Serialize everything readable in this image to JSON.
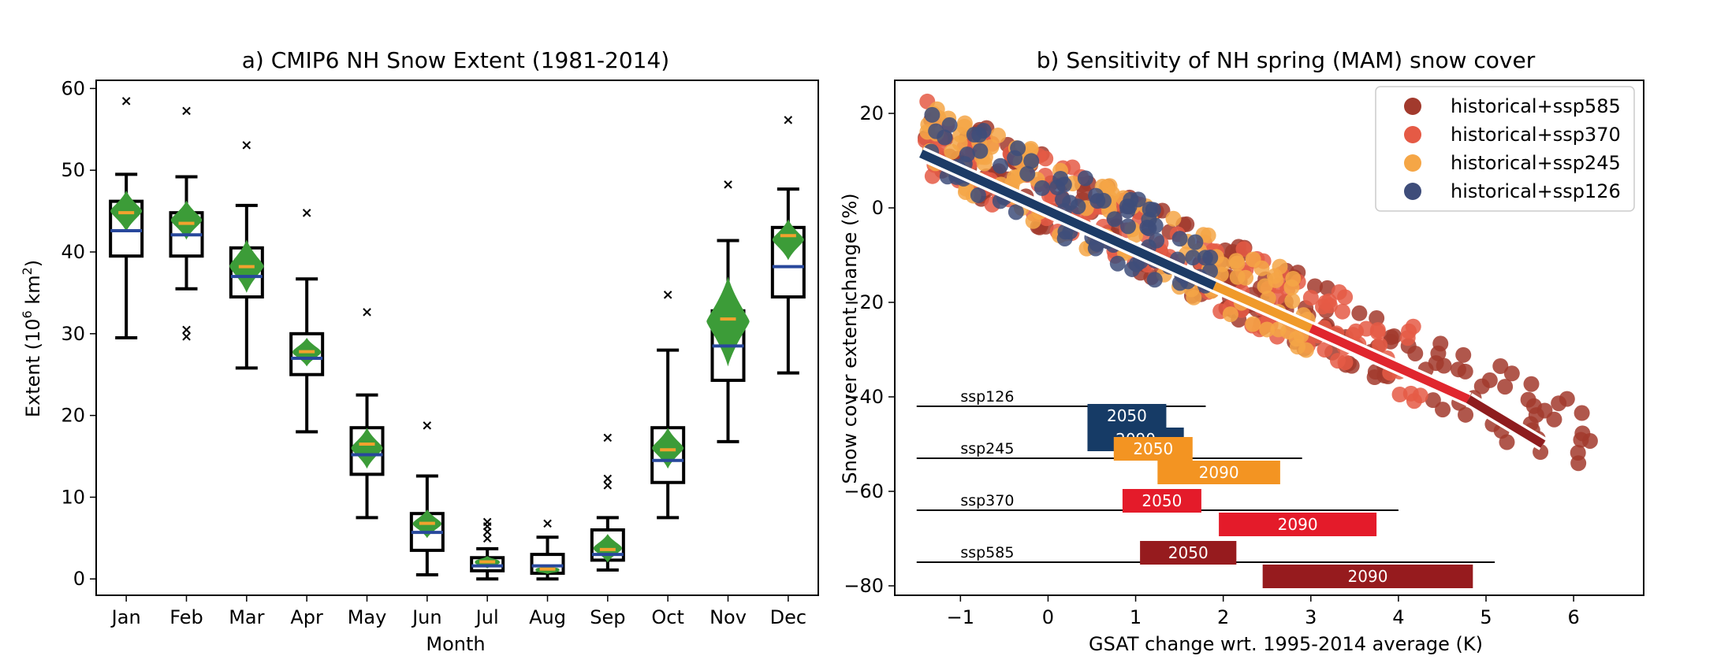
{
  "chart_data": [
    {
      "type": "box",
      "title": "a) CMIP6 NH Snow Extent (1981-2014)",
      "xlabel": "Month",
      "ylabel_main": "Extent (10",
      "ylabel_sup1": "6",
      "ylabel_mid": " km",
      "ylabel_sup2": "2",
      "ylabel_end": ")",
      "ylim": [
        -2,
        61
      ],
      "yticks": [
        0,
        10,
        20,
        30,
        40,
        50,
        60
      ],
      "categories": [
        "Jan",
        "Feb",
        "Mar",
        "Apr",
        "May",
        "Jun",
        "Jul",
        "Aug",
        "Sep",
        "Oct",
        "Nov",
        "Dec"
      ],
      "boxes": [
        {
          "whislo": 29.5,
          "q1": 39.5,
          "q3": 46.2,
          "whishi": 49.5,
          "fliers": [
            58.5
          ]
        },
        {
          "whislo": 35.5,
          "q1": 39.5,
          "q3": 44.8,
          "whishi": 49.2,
          "fliers": [
            57.3,
            30.5,
            29.7
          ]
        },
        {
          "whislo": 25.8,
          "q1": 34.5,
          "q3": 40.5,
          "whishi": 45.7,
          "fliers": [
            53.1
          ]
        },
        {
          "whislo": 18.0,
          "q1": 25.0,
          "q3": 30.0,
          "whishi": 36.7,
          "fliers": [
            44.8
          ]
        },
        {
          "whislo": 7.5,
          "q1": 12.8,
          "q3": 18.5,
          "whishi": 22.5,
          "fliers": [
            32.7
          ]
        },
        {
          "whislo": 0.5,
          "q1": 3.5,
          "q3": 8.0,
          "whishi": 12.6,
          "fliers": [
            18.8
          ]
        },
        {
          "whislo": 0.0,
          "q1": 1.0,
          "q3": 2.6,
          "whishi": 3.7,
          "fliers": [
            5.0,
            5.8,
            6.5,
            7.0
          ]
        },
        {
          "whislo": 0.0,
          "q1": 0.7,
          "q3": 3.0,
          "whishi": 5.1,
          "fliers": [
            6.8
          ]
        },
        {
          "whislo": 1.1,
          "q1": 2.3,
          "q3": 6.0,
          "whishi": 7.5,
          "fliers": [
            17.3,
            12.3,
            11.5
          ]
        },
        {
          "whislo": 7.5,
          "q1": 11.8,
          "q3": 18.5,
          "whishi": 28.0,
          "fliers": [
            34.8
          ]
        },
        {
          "whislo": 16.8,
          "q1": 24.3,
          "q3": 32.8,
          "whishi": 41.4,
          "fliers": [
            48.3
          ]
        },
        {
          "whislo": 25.2,
          "q1": 34.5,
          "q3": 43.0,
          "whishi": 47.7,
          "fliers": [
            56.2
          ]
        }
      ],
      "obs_range": [
        [
          42.5,
          47.5
        ],
        [
          41.5,
          46.3
        ],
        [
          35.0,
          41.5
        ],
        [
          26.0,
          29.5
        ],
        [
          13.5,
          18.5
        ],
        [
          5.0,
          8.5
        ],
        [
          1.3,
          2.8
        ],
        [
          0.6,
          1.6
        ],
        [
          2.0,
          5.5
        ],
        [
          13.5,
          18.5
        ],
        [
          26.0,
          37.0
        ],
        [
          39.0,
          44.0
        ]
      ],
      "mean_orange": [
        44.8,
        43.5,
        38.2,
        27.8,
        16.5,
        6.8,
        2.1,
        1.2,
        3.6,
        15.8,
        31.8,
        42.0
      ],
      "median_blue": [
        42.6,
        42.1,
        37.0,
        27.0,
        15.2,
        5.7,
        1.6,
        1.6,
        3.0,
        14.5,
        28.5,
        38.2
      ],
      "colors": {
        "violin": "#3c9c38",
        "mean": "#f1a22e",
        "median": "#28489c"
      }
    },
    {
      "type": "scatter",
      "title": "b) Sensitivity of NH spring (MAM) snow cover",
      "xlabel": "GSAT change wrt. 1995-2014 average (K)",
      "ylabel": "Snow cover extent change (%)",
      "xlim": [
        -1.75,
        6.8
      ],
      "ylim": [
        -82,
        27
      ],
      "xticks": [
        -1,
        0,
        1,
        2,
        3,
        4,
        5,
        6
      ],
      "xtick_labels": [
        "−1",
        "0",
        "1",
        "2",
        "3",
        "4",
        "5",
        "6"
      ],
      "yticks": [
        20,
        0,
        -20,
        -40,
        -60,
        -80
      ],
      "ytick_labels": [
        "20",
        "0",
        "−20",
        "−40",
        "−60",
        "−80"
      ],
      "legend_position": "top-right",
      "series": [
        {
          "name": "historical+ssp585",
          "color": "#a23a2d",
          "xrange": [
            -1.4,
            6.4
          ]
        },
        {
          "name": "historical+ssp370",
          "color": "#e55a45",
          "xrange": [
            -1.4,
            4.3
          ]
        },
        {
          "name": "historical+ssp245",
          "color": "#f5a646",
          "xrange": [
            -1.4,
            3.0
          ]
        },
        {
          "name": "historical+ssp126",
          "color": "#3e4d7a",
          "xrange": [
            -1.4,
            1.9
          ]
        }
      ],
      "fit_line": {
        "segments": [
          {
            "x": [
              -1.45,
              1.9
            ],
            "y": [
              11.5,
              -16.5
            ],
            "color": "#1c3b66"
          },
          {
            "x": [
              1.9,
              3.0
            ],
            "y": [
              -16.5,
              -25.5
            ],
            "color": "#f09a2a"
          },
          {
            "x": [
              3.0,
              4.8
            ],
            "y": [
              -25.5,
              -40.5
            ],
            "color": "#e0262e"
          },
          {
            "x": [
              4.8,
              5.65
            ],
            "y": [
              -40.5,
              -50.0
            ],
            "color": "#8e1c1e"
          }
        ]
      },
      "ranges": [
        {
          "scenario": "ssp126",
          "line_y": -42,
          "baseline": [
            -1.5,
            1.8
          ],
          "bars": [
            {
              "label": "2050",
              "x": [
                0.45,
                1.35
              ],
              "y": [
                -41.5,
                -46.5
              ]
            },
            {
              "label": "2090",
              "x": [
                0.45,
                1.55
              ],
              "y": [
                -46.5,
                -51.5
              ]
            }
          ],
          "color": "#163b66"
        },
        {
          "scenario": "ssp245",
          "line_y": -53,
          "baseline": [
            -1.5,
            2.9
          ],
          "bars": [
            {
              "label": "2050",
              "x": [
                0.75,
                1.65
              ],
              "y": [
                -48.5,
                -53.5
              ]
            },
            {
              "label": "2090",
              "x": [
                1.25,
                2.65
              ],
              "y": [
                -53.5,
                -58.5
              ]
            }
          ],
          "color": "#f39422"
        },
        {
          "scenario": "ssp370",
          "line_y": -64,
          "baseline": [
            -1.5,
            4.0
          ],
          "bars": [
            {
              "label": "2050",
              "x": [
                0.85,
                1.75
              ],
              "y": [
                -59.5,
                -64.5
              ]
            },
            {
              "label": "2090",
              "x": [
                1.95,
                3.75
              ],
              "y": [
                -64.5,
                -69.5
              ]
            }
          ],
          "color": "#e41b2a"
        },
        {
          "scenario": "ssp585",
          "line_y": -75,
          "baseline": [
            -1.5,
            5.1
          ],
          "bars": [
            {
              "label": "2050",
              "x": [
                1.05,
                2.15
              ],
              "y": [
                -70.5,
                -75.5
              ]
            },
            {
              "label": "2090",
              "x": [
                2.45,
                4.85
              ],
              "y": [
                -75.5,
                -80.5
              ]
            }
          ],
          "color": "#961b1e"
        }
      ]
    }
  ]
}
